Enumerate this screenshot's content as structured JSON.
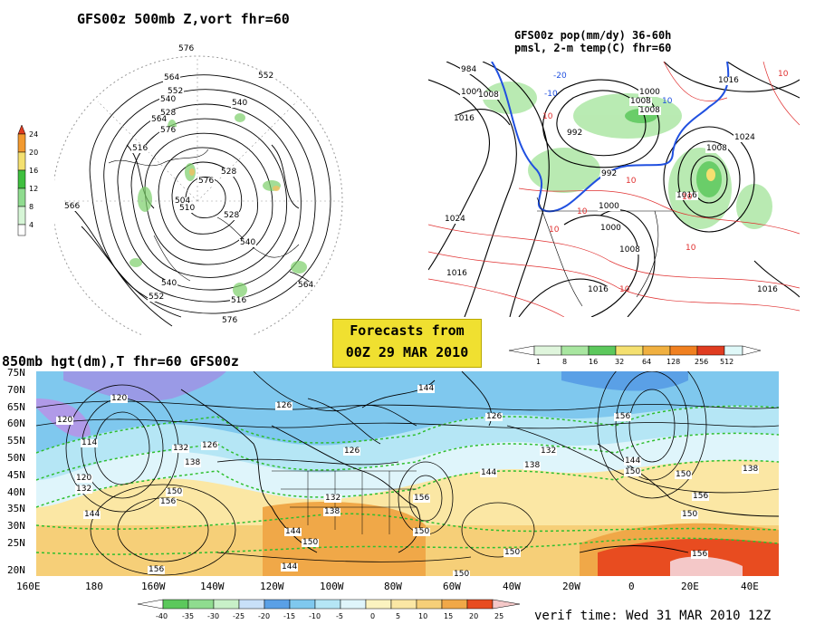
{
  "panels": {
    "top_left": {
      "title": "GFS00z  500mb Z,vort    fhr=60",
      "colorbar_ticks": [
        "24",
        "20",
        "16",
        "12",
        "8",
        "4"
      ],
      "contour_labels": [
        "576",
        "564",
        "552",
        "540",
        "528",
        "516",
        "504",
        "528",
        "540",
        "552",
        "576",
        "564",
        "576",
        "564",
        "552",
        "578",
        "576",
        "528",
        "540",
        "510",
        "516",
        "564",
        "552",
        "576",
        "566",
        "564",
        "540"
      ]
    },
    "top_right": {
      "title_line1": "GFS00z pop(mm/dy) 36-60h",
      "title_line2": "pmsl, 2-m temp(C)  fhr=60",
      "colorbar_ticks": [
        "1",
        "8",
        "16",
        "32",
        "64",
        "128",
        "256",
        "512"
      ],
      "contour_labels": [
        "984",
        "1000",
        "1008",
        "1016",
        "1008",
        "992",
        "1000",
        "1008",
        "1016",
        "1024",
        "1024",
        "1008",
        "1016",
        "1000",
        "1008",
        "1016",
        "1016",
        "1016",
        "992",
        "1008",
        "1000"
      ],
      "temp_labels": [
        "10",
        "10",
        "-10",
        "10",
        "-20",
        "10",
        "10",
        "10",
        "10",
        "10",
        "10"
      ]
    },
    "bottom": {
      "title": "850mb hgt(dm),T   fhr=60 GFS00z",
      "colorbar_ticks": [
        "-40",
        "-35",
        "-30",
        "-25",
        "-20",
        "-15",
        "-10",
        "-5",
        "0",
        "5",
        "10",
        "15",
        "20",
        "25"
      ],
      "lat_labels": [
        "75N",
        "70N",
        "65N",
        "60N",
        "55N",
        "50N",
        "45N",
        "40N",
        "35N",
        "30N",
        "25N",
        "20N"
      ],
      "lon_labels": [
        "160E",
        "180",
        "160W",
        "140W",
        "120W",
        "100W",
        "80W",
        "60W",
        "40W",
        "20W",
        "0",
        "20E",
        "40E"
      ],
      "contour_labels": [
        "120",
        "120",
        "114",
        "120",
        "126",
        "132",
        "138",
        "144",
        "150",
        "156",
        "132",
        "126",
        "126",
        "144",
        "132",
        "138",
        "144",
        "150",
        "156",
        "144",
        "150",
        "156",
        "150",
        "126",
        "132",
        "138",
        "144",
        "150",
        "156",
        "144",
        "150",
        "156",
        "150",
        "138",
        "150",
        "156"
      ]
    }
  },
  "forecasts_box": {
    "line1": "Forecasts from",
    "line2": "00Z 29 MAR 2010"
  },
  "verif_time": "verif time: Wed 31 MAR 2010 12Z"
}
